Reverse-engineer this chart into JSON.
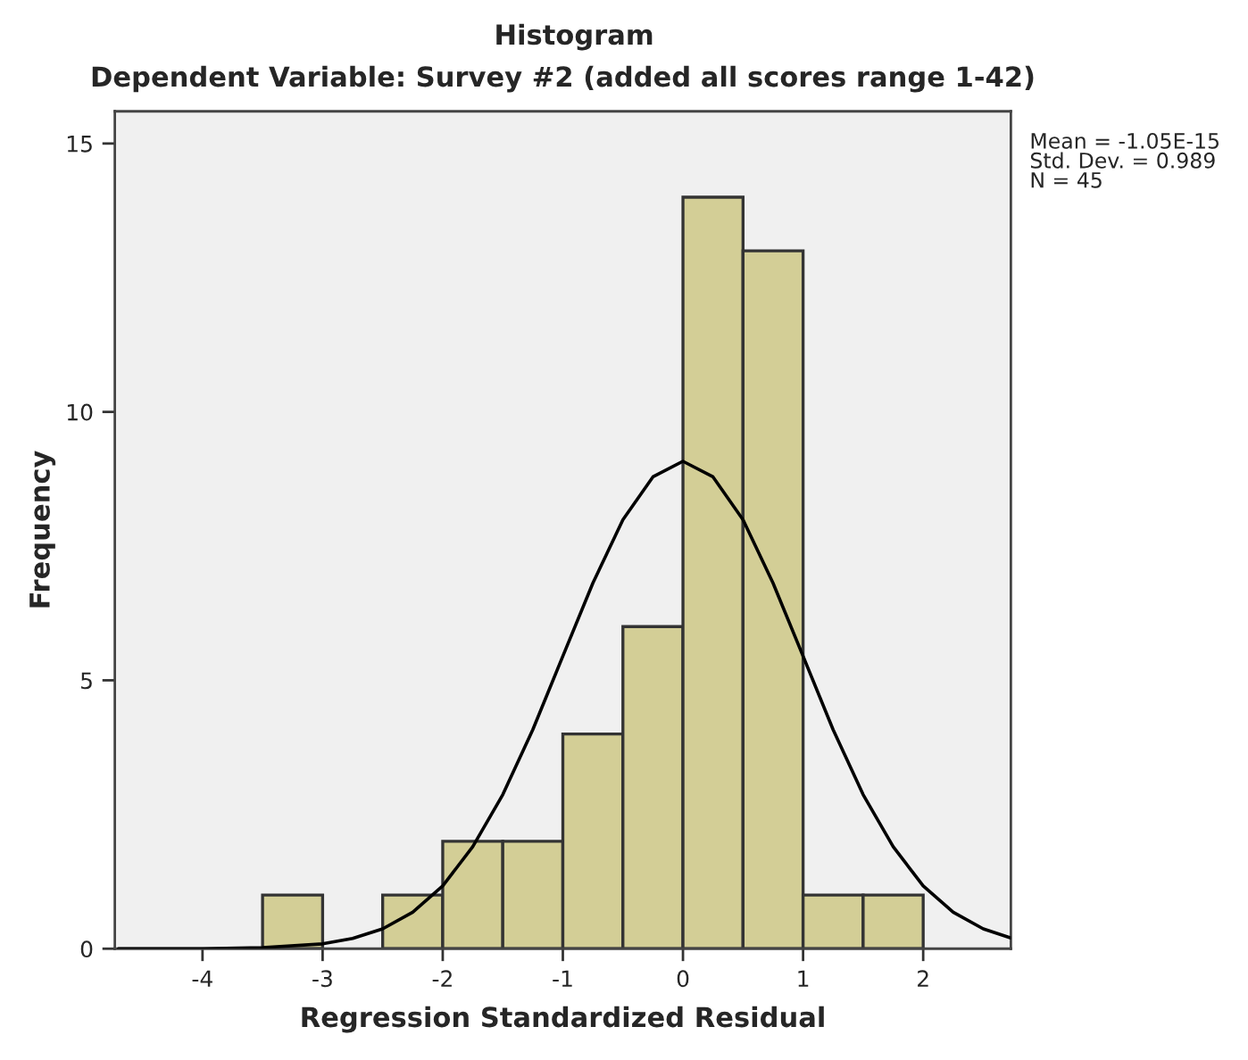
{
  "chart_data": {
    "type": "histogram",
    "title": "Histogram",
    "subtitle": "Dependent Variable: Survey #2 (added all scores range 1-42)",
    "xlabel": "Regression Standardized Residual",
    "ylabel": "Frequency",
    "bins": [
      -3.5,
      -3.0,
      -2.5,
      -2.0,
      -1.5,
      -1.0,
      -0.5,
      0.0,
      0.5,
      1.0,
      1.5,
      2.0
    ],
    "values": [
      1,
      0,
      1,
      2,
      2,
      4,
      6,
      14,
      13,
      1,
      1
    ],
    "color": "#d3ce96",
    "series": [
      {
        "type": "line",
        "color": "#000000",
        "x": [
          -4.7,
          -4.0,
          -3.5,
          -3.0,
          -2.75,
          -2.5,
          -2.25,
          -2.0,
          -1.75,
          -1.5,
          -1.25,
          -1.0,
          -0.75,
          -0.5,
          -0.25,
          0.0,
          0.25,
          0.5,
          0.75,
          1.0,
          1.25,
          1.5,
          1.75,
          2.0,
          2.25,
          2.5,
          2.73
        ],
        "values": [
          0.0,
          0.0,
          0.02,
          0.09,
          0.19,
          0.37,
          0.68,
          1.17,
          1.9,
          2.87,
          4.08,
          5.45,
          6.81,
          7.99,
          8.79,
          9.08,
          8.79,
          7.99,
          6.81,
          5.45,
          4.08,
          2.87,
          1.9,
          1.17,
          0.68,
          0.37,
          0.2
        ]
      }
    ],
    "xlim": [
      -4.73,
      2.73
    ],
    "ylim": [
      0,
      15.6
    ],
    "xticks": [
      -4,
      -3,
      -2,
      -1,
      0,
      1,
      2
    ],
    "yticks": [
      0,
      5,
      10,
      15
    ],
    "annotations": [
      "Mean = -1.05E-15\nStd. Dev. = 0.989\nN = 45"
    ],
    "grid": false,
    "legend": false
  }
}
